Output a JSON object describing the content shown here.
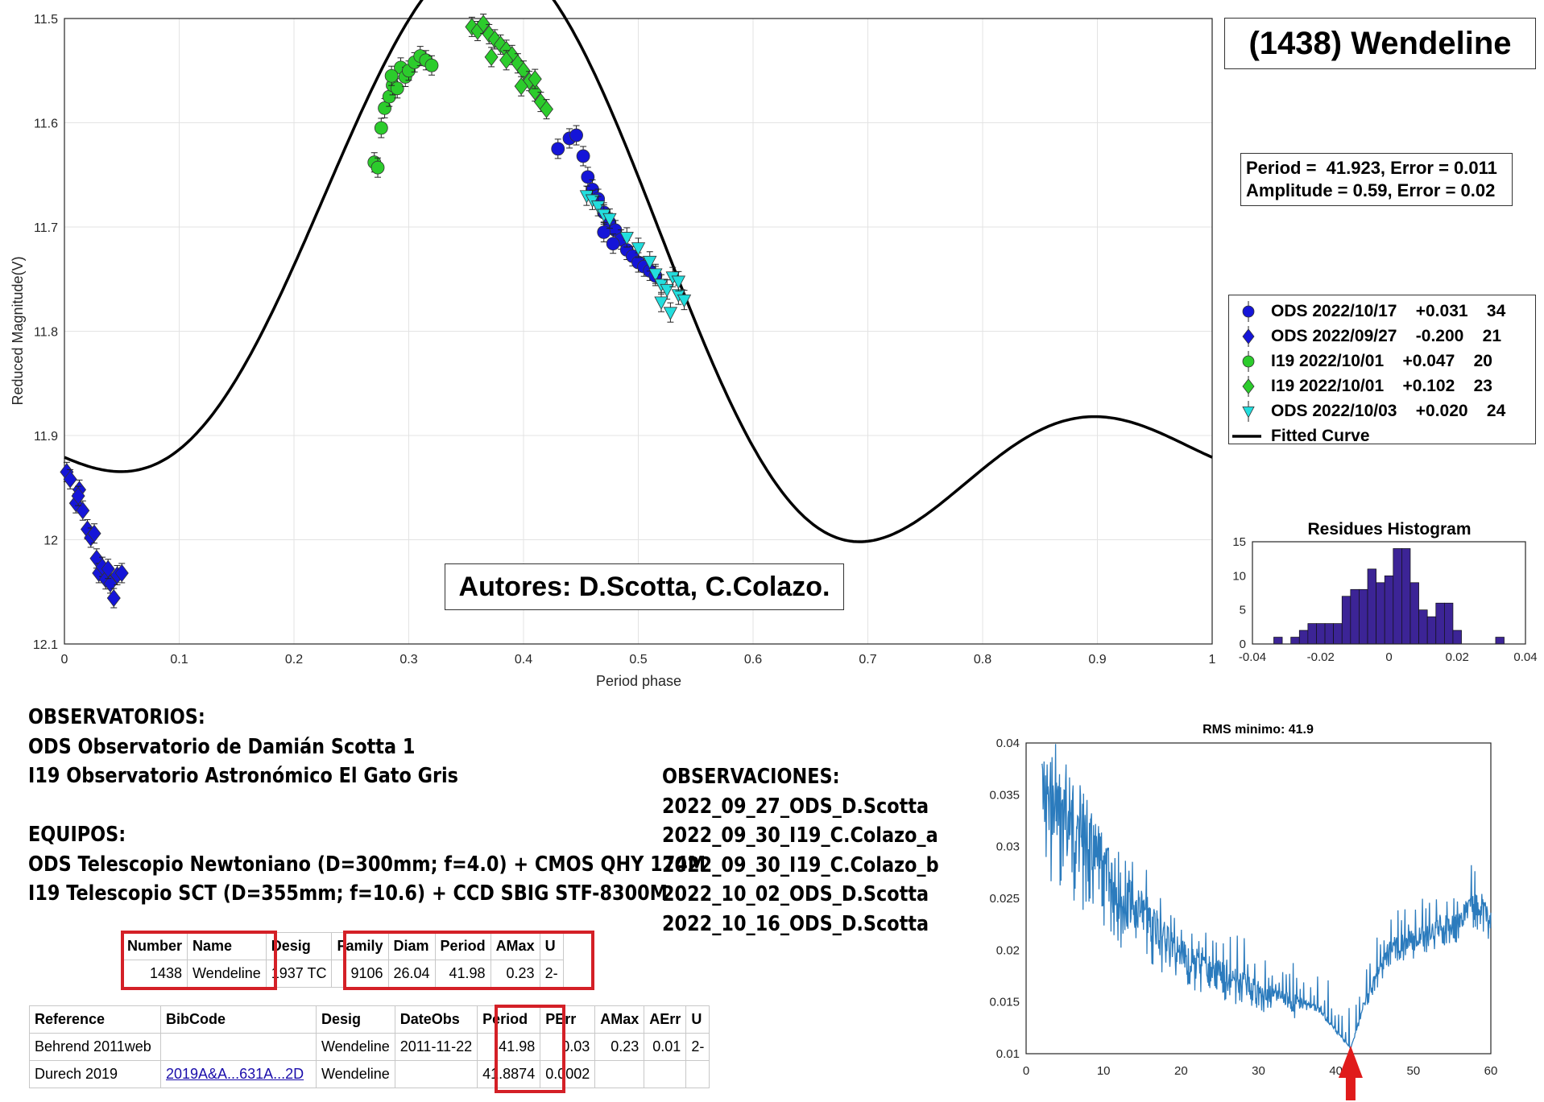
{
  "chart_data": [
    {
      "type": "scatter",
      "title": "(1438) Wendeline",
      "xlabel": "Period phase",
      "ylabel": "Reduced Magnitude(V)",
      "xlim": [
        0,
        1
      ],
      "ylim": [
        11.5,
        12.1
      ],
      "y_reversed": true,
      "xticks": [
        "0",
        "0.1",
        "0.2",
        "0.3",
        "0.4",
        "0.5",
        "0.6",
        "0.7",
        "0.8",
        "0.9",
        "1"
      ],
      "yticks": [
        "11.5",
        "11.6",
        "11.7",
        "11.8",
        "11.9",
        "12",
        "12.1"
      ],
      "grid": true,
      "legend_position": "right",
      "period_text": "Period =  41.923, Error = 0.011",
      "amplitude_text": "Amplitude = 0.59, Error = 0.02",
      "fitted_curve": {
        "name": "Fitted Curve",
        "mean": 11.79,
        "harmonics": [
          [
            0.1345,
            -0.1829
          ],
          [
            -0.0036,
            0.1296
          ]
        ]
      },
      "series": [
        {
          "name": "ODS 2022/10/17",
          "offset": "+0.031",
          "count": "34",
          "marker": "circle",
          "color": "#1515d8",
          "points": [
            [
              0.43,
              11.625
            ],
            [
              0.44,
              11.615
            ],
            [
              0.446,
              11.612
            ],
            [
              0.452,
              11.632
            ],
            [
              0.456,
              11.652
            ],
            [
              0.46,
              11.664
            ],
            [
              0.465,
              11.673
            ],
            [
              0.47,
              11.686
            ],
            [
              0.475,
              11.696
            ],
            [
              0.48,
              11.703
            ],
            [
              0.485,
              11.712
            ],
            [
              0.49,
              11.722
            ],
            [
              0.495,
              11.728
            ],
            [
              0.5,
              11.734
            ],
            [
              0.505,
              11.738
            ],
            [
              0.51,
              11.742
            ],
            [
              0.515,
              11.747
            ],
            [
              0.47,
              11.705
            ],
            [
              0.478,
              11.716
            ]
          ]
        },
        {
          "name": "ODS 2022/09/27",
          "offset": "-0.200",
          "count": "21",
          "marker": "diamond",
          "color": "#1515d8",
          "points": [
            [
              0.002,
              11.935
            ],
            [
              0.005,
              11.942
            ],
            [
              0.01,
              11.965
            ],
            [
              0.013,
              11.952
            ],
            [
              0.016,
              11.972
            ],
            [
              0.02,
              11.99
            ],
            [
              0.023,
              11.998
            ],
            [
              0.026,
              11.994
            ],
            [
              0.028,
              12.018
            ],
            [
              0.03,
              12.032
            ],
            [
              0.033,
              12.026
            ],
            [
              0.036,
              12.038
            ],
            [
              0.04,
              12.042
            ],
            [
              0.043,
              12.056
            ],
            [
              0.046,
              12.034
            ],
            [
              0.05,
              12.032
            ],
            [
              0.038,
              12.028
            ],
            [
              0.012,
              11.958
            ]
          ]
        },
        {
          "name": "I19 2022/10/01",
          "offset": "+0.047",
          "count": "20",
          "marker": "circle",
          "color": "#2ccc2c",
          "points": [
            [
              0.27,
              11.638
            ],
            [
              0.273,
              11.643
            ],
            [
              0.276,
              11.605
            ],
            [
              0.279,
              11.586
            ],
            [
              0.283,
              11.575
            ],
            [
              0.286,
              11.564
            ],
            [
              0.29,
              11.567
            ],
            [
              0.293,
              11.547
            ],
            [
              0.297,
              11.556
            ],
            [
              0.3,
              11.55
            ],
            [
              0.305,
              11.542
            ],
            [
              0.31,
              11.536
            ],
            [
              0.315,
              11.54
            ],
            [
              0.32,
              11.545
            ],
            [
              0.285,
              11.555
            ]
          ]
        },
        {
          "name": "I19 2022/10/01",
          "offset": "+0.102",
          "count": "23",
          "marker": "diamond",
          "color": "#2ccc2c",
          "points": [
            [
              0.355,
              11.508
            ],
            [
              0.36,
              11.512
            ],
            [
              0.365,
              11.505
            ],
            [
              0.37,
              11.515
            ],
            [
              0.375,
              11.52
            ],
            [
              0.38,
              11.525
            ],
            [
              0.385,
              11.53
            ],
            [
              0.39,
              11.535
            ],
            [
              0.395,
              11.543
            ],
            [
              0.4,
              11.55
            ],
            [
              0.405,
              11.56
            ],
            [
              0.41,
              11.57
            ],
            [
              0.415,
              11.58
            ],
            [
              0.42,
              11.587
            ],
            [
              0.372,
              11.537
            ],
            [
              0.385,
              11.54
            ],
            [
              0.398,
              11.565
            ],
            [
              0.41,
              11.558
            ]
          ]
        },
        {
          "name": "ODS 2022/10/03",
          "offset": "+0.020",
          "count": "24",
          "marker": "triangle-down",
          "color": "#22dede",
          "points": [
            [
              0.455,
              11.67
            ],
            [
              0.46,
              11.674
            ],
            [
              0.465,
              11.68
            ],
            [
              0.47,
              11.688
            ],
            [
              0.475,
              11.692
            ],
            [
              0.49,
              11.71
            ],
            [
              0.5,
              11.72
            ],
            [
              0.51,
              11.733
            ],
            [
              0.515,
              11.745
            ],
            [
              0.52,
              11.755
            ],
            [
              0.525,
              11.76
            ],
            [
              0.53,
              11.748
            ],
            [
              0.535,
              11.765
            ],
            [
              0.54,
              11.77
            ],
            [
              0.528,
              11.782
            ],
            [
              0.52,
              11.772
            ],
            [
              0.535,
              11.752
            ]
          ]
        }
      ]
    },
    {
      "type": "bar",
      "title": "Residues Histogram",
      "xlim": [
        -0.04,
        0.04
      ],
      "ylim": [
        0,
        15
      ],
      "xticks": [
        "-0.04",
        "-0.02",
        "0",
        "0.02",
        "0.04"
      ],
      "yticks": [
        "0",
        "5",
        "10",
        "15"
      ],
      "color": "#3c2496",
      "bin_width": 0.0025,
      "bins": [
        [
          -0.0325,
          1
        ],
        [
          -0.03,
          0
        ],
        [
          -0.0275,
          1
        ],
        [
          -0.025,
          2
        ],
        [
          -0.0225,
          3
        ],
        [
          -0.02,
          3
        ],
        [
          -0.0175,
          3
        ],
        [
          -0.015,
          3
        ],
        [
          -0.0125,
          7
        ],
        [
          -0.01,
          8
        ],
        [
          -0.0075,
          8
        ],
        [
          -0.005,
          11
        ],
        [
          -0.0025,
          9
        ],
        [
          0,
          10
        ],
        [
          0.0025,
          14
        ],
        [
          0.005,
          14
        ],
        [
          0.0075,
          9
        ],
        [
          0.01,
          5
        ],
        [
          0.0125,
          4
        ],
        [
          0.015,
          6
        ],
        [
          0.0175,
          6
        ],
        [
          0.02,
          2
        ],
        [
          0.0225,
          0
        ],
        [
          0.025,
          0
        ],
        [
          0.0275,
          0
        ],
        [
          0.0325,
          1
        ]
      ]
    },
    {
      "type": "line",
      "title": "RMS minimo: 41.9",
      "xlim": [
        0,
        60
      ],
      "ylim": [
        0.01,
        0.04
      ],
      "xticks": [
        "0",
        "10",
        "20",
        "30",
        "40",
        "50",
        "60"
      ],
      "yticks": [
        "0.01",
        "0.015",
        "0.02",
        "0.025",
        "0.03",
        "0.035",
        "0.04"
      ],
      "color": "#2b7bbd",
      "marker_x": 41.9,
      "anchors": [
        [
          2,
          0.0395
        ],
        [
          5,
          0.037
        ],
        [
          8,
          0.034
        ],
        [
          12,
          0.028
        ],
        [
          16,
          0.025
        ],
        [
          20,
          0.021
        ],
        [
          25,
          0.019
        ],
        [
          30,
          0.017
        ],
        [
          34,
          0.016
        ],
        [
          38,
          0.0145
        ],
        [
          41.9,
          0.0105
        ],
        [
          44,
          0.016
        ],
        [
          47,
          0.021
        ],
        [
          50,
          0.022
        ],
        [
          53,
          0.023
        ],
        [
          56,
          0.024
        ],
        [
          58,
          0.026
        ],
        [
          60,
          0.024
        ]
      ]
    }
  ],
  "title_box": "(1438) Wendeline",
  "authors": "Autores: D.Scotta, C.Colazo.",
  "info_left": [
    "OBSERVATORIOS:",
    "ODS Observatorio de Damián Scotta 1",
    "I19 Observatorio Astronómico El Gato Gris",
    "",
    "EQUIPOS:",
    "ODS Telescopio Newtoniano (D=300mm; f=4.0) + CMOS QHY 174M",
    "I19 Telescopio SCT (D=355mm; f=10.6) + CCD SBIG STF-8300M"
  ],
  "info_right": [
    "OBSERVACIONES:",
    "2022_09_27_ODS_D.Scotta",
    "2022_09_30_I19_C.Colazo_a",
    "2022_09_30_I19_C.Colazo_b",
    "2022_10_02_ODS_D.Scotta",
    "2022_10_16_ODS_D.Scotta"
  ],
  "table1": {
    "headers": [
      "Number",
      "Name",
      "Desig",
      "Family",
      "Diam",
      "Period",
      "AMax",
      "U"
    ],
    "row": [
      "1438",
      "Wendeline",
      "1937 TC",
      "9106",
      "26.04",
      "41.98",
      "0.23",
      "2-"
    ]
  },
  "table2": {
    "headers": [
      "Reference",
      "BibCode",
      "Desig",
      "DateObs",
      "Period",
      "PErr",
      "AMax",
      "AErr",
      "U"
    ],
    "rows": [
      [
        "Behrend 2011web",
        "",
        "Wendeline",
        "2011-11-22",
        "41.98",
        "0.03",
        "0.23",
        "0.01",
        "2-"
      ],
      [
        "Durech 2019",
        "2019A&A...631A...2D",
        "Wendeline",
        "",
        "41.8874",
        "0.0002",
        "",
        "",
        ""
      ]
    ]
  },
  "colors": {
    "highlight": "#d42027",
    "fit": "#000000"
  }
}
